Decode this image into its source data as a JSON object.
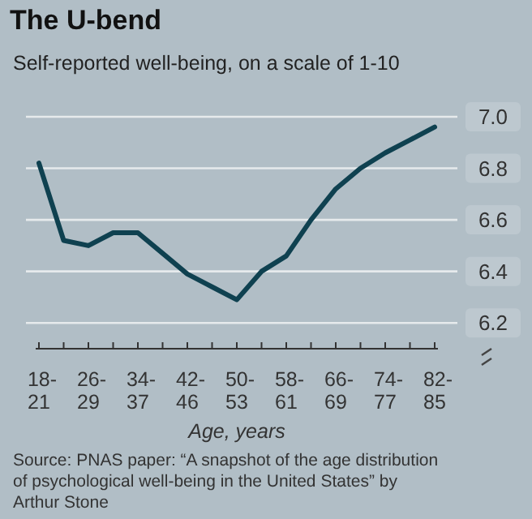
{
  "chart_data": {
    "type": "line",
    "title": "The U-bend",
    "subtitle": "Self-reported well-being, on a scale of 1-10",
    "xlabel": "Age, years",
    "categories": [
      "18-21",
      null,
      "26-29",
      null,
      "34-37",
      null,
      "42-46",
      null,
      "50-53",
      null,
      "58-61",
      null,
      "66-69",
      null,
      "74-77",
      null,
      "82-85"
    ],
    "series": [
      {
        "color": "#0f4150",
        "values": [
          6.82,
          6.52,
          6.5,
          6.55,
          6.55,
          6.47,
          6.39,
          6.34,
          6.29,
          6.4,
          6.46,
          6.6,
          6.72,
          6.8,
          6.86,
          6.91,
          6.96
        ]
      }
    ],
    "ylim": [
      6.1,
      7.0
    ],
    "yticks": [
      6.2,
      6.4,
      6.6,
      6.8,
      {
        "value": 7.0,
        "label": "7.0"
      }
    ],
    "grid": "y",
    "marker": "none",
    "line_style": "solid",
    "annotations": [
      "Source: PNAS paper: “A snapshot of the age distribution of psychological well-being in the United States” by Arthur Stone"
    ]
  }
}
